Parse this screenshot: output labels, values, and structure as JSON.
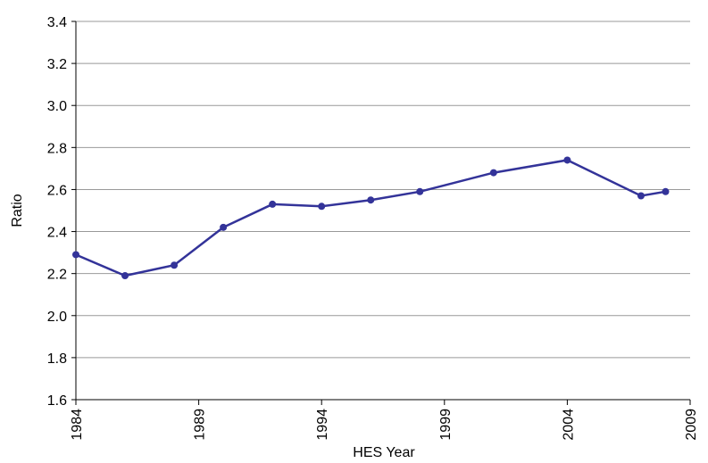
{
  "chart_data": {
    "type": "line",
    "x_label": "HES Year",
    "y_label": "Ratio",
    "x": [
      1984,
      1986,
      1988,
      1990,
      1992,
      1994,
      1996,
      1998,
      2001,
      2004,
      2007,
      2008
    ],
    "series": [
      {
        "name": "Ratio",
        "color": "#333399",
        "values": [
          2.29,
          2.19,
          2.24,
          2.42,
          2.53,
          2.52,
          2.55,
          2.59,
          2.68,
          2.74,
          2.57,
          2.59
        ]
      }
    ],
    "xlim": [
      1984,
      2009
    ],
    "xticks": [
      1984,
      1989,
      1994,
      1999,
      2004,
      2009
    ],
    "ylim": [
      1.6,
      3.4
    ],
    "yticks": [
      1.6,
      1.8,
      {
        "value": 2,
        "label": "2.0"
      },
      2.2,
      2.4,
      2.6,
      2.8,
      {
        "value": 3,
        "label": "3.0"
      },
      3.2,
      3.4
    ],
    "grid": true
  }
}
